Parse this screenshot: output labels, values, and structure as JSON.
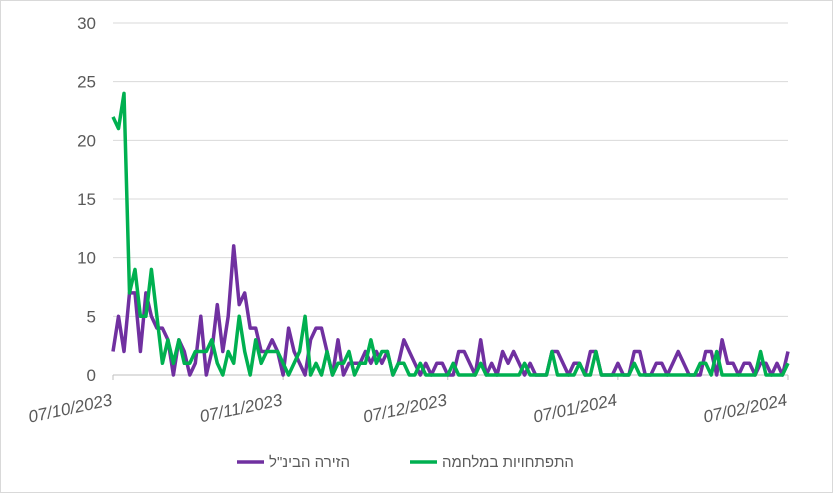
{
  "chart_data": {
    "type": "line",
    "categories": [
      "07/10/2023",
      null,
      null,
      null,
      null,
      null,
      null,
      null,
      null,
      null,
      null,
      null,
      null,
      null,
      null,
      null,
      null,
      null,
      null,
      null,
      null,
      null,
      null,
      null,
      null,
      null,
      null,
      null,
      null,
      null,
      null,
      "07/11/2023",
      null,
      null,
      null,
      null,
      null,
      null,
      null,
      null,
      null,
      null,
      null,
      null,
      null,
      null,
      null,
      null,
      null,
      null,
      null,
      null,
      null,
      null,
      null,
      null,
      null,
      null,
      null,
      null,
      null,
      "07/12/2023",
      null,
      null,
      null,
      null,
      null,
      null,
      null,
      null,
      null,
      null,
      null,
      null,
      null,
      null,
      null,
      null,
      null,
      null,
      null,
      null,
      null,
      null,
      null,
      null,
      null,
      null,
      null,
      null,
      null,
      null,
      "07/01/2024",
      null,
      null,
      null,
      null,
      null,
      null,
      null,
      null,
      null,
      null,
      null,
      null,
      null,
      null,
      null,
      null,
      null,
      null,
      null,
      null,
      null,
      null,
      null,
      null,
      null,
      null,
      null,
      null,
      null,
      null,
      "07/02/2024"
    ],
    "series": [
      {
        "name": "הזירה הבינ\"ל",
        "color": "#7030a0",
        "values": [
          2,
          5,
          2,
          7,
          7,
          2,
          7,
          5,
          4,
          4,
          3,
          0,
          3,
          2,
          0,
          1,
          5,
          0,
          2,
          6,
          2,
          5,
          11,
          6,
          7,
          4,
          4,
          2,
          2,
          3,
          2,
          0,
          4,
          2,
          1,
          0,
          3,
          4,
          4,
          2,
          0,
          3,
          0,
          1,
          1,
          1,
          2,
          1,
          2,
          1,
          2,
          0,
          1,
          3,
          2,
          1,
          0,
          1,
          0,
          1,
          1,
          0,
          0,
          2,
          2,
          1,
          0,
          3,
          0,
          1,
          0,
          2,
          1,
          2,
          1,
          0,
          1,
          0,
          0,
          0,
          2,
          2,
          1,
          0,
          1,
          1,
          0,
          2,
          2,
          0,
          0,
          0,
          1,
          0,
          0,
          2,
          2,
          0,
          0,
          1,
          1,
          0,
          1,
          2,
          1,
          0,
          0,
          0,
          2,
          2,
          0,
          3,
          1,
          1,
          0,
          1,
          1,
          0,
          1,
          1,
          0,
          1,
          0,
          2
        ]
      },
      {
        "name": "התפתחויות במלחמה",
        "color": "#00b050",
        "values": [
          22,
          21,
          24,
          7,
          9,
          5,
          5,
          9,
          5,
          1,
          3,
          1,
          3,
          1,
          1,
          2,
          2,
          2,
          3,
          1,
          0,
          2,
          1,
          5,
          2,
          0,
          3,
          1,
          2,
          2,
          2,
          1,
          0,
          1,
          2,
          5,
          0,
          1,
          0,
          2,
          0,
          1,
          1,
          2,
          0,
          1,
          1,
          3,
          1,
          2,
          2,
          0,
          1,
          1,
          0,
          0,
          1,
          0,
          0,
          0,
          0,
          0,
          1,
          0,
          0,
          0,
          0,
          1,
          0,
          0,
          0,
          0,
          0,
          0,
          0,
          1,
          0,
          0,
          0,
          0,
          2,
          0,
          0,
          0,
          0,
          1,
          0,
          0,
          2,
          0,
          0,
          0,
          0,
          0,
          0,
          1,
          0,
          0,
          0,
          0,
          0,
          0,
          0,
          0,
          0,
          0,
          0,
          1,
          1,
          0,
          2,
          0,
          0,
          0,
          0,
          0,
          0,
          0,
          2,
          0,
          0,
          0,
          0,
          1
        ]
      }
    ],
    "ylim": [
      0,
      30
    ],
    "yticks": [
      0,
      5,
      10,
      15,
      20,
      25,
      30
    ],
    "grid": true
  }
}
